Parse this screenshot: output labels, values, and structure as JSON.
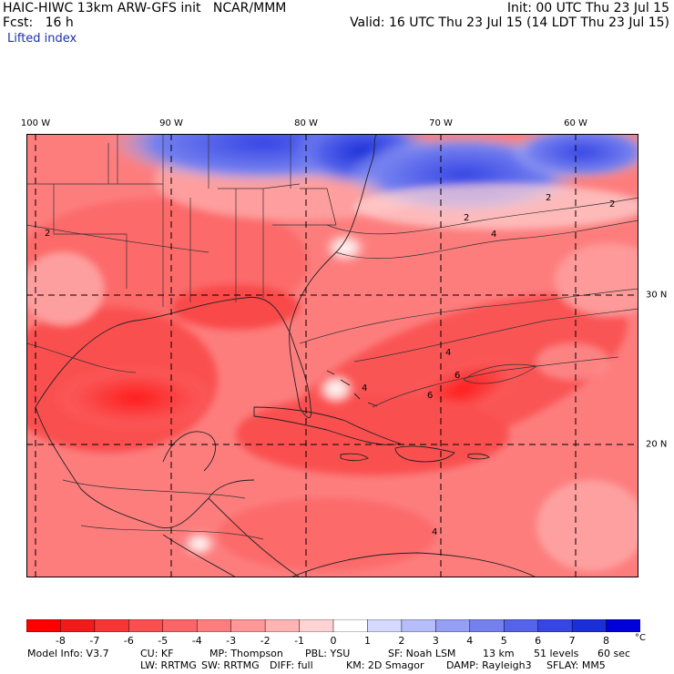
{
  "header": {
    "model_line": "HAIC-HIWC 13km ARW-GFS init   NCAR/MMM",
    "fcst_line": "Fcst:   16 h",
    "variable": "Lifted index",
    "init_line": "Init: 00 UTC Thu 23 Jul 15",
    "valid_line": "Valid: 16 UTC Thu 23 Jul 15 (14 LDT Thu 23 Jul 15)"
  },
  "map": {
    "lon_labels": [
      "100 W",
      "90 W",
      "80 W",
      "70 W",
      "60 W"
    ],
    "lat_labels": [
      "30 N",
      "20 N"
    ],
    "contour_labels": [
      "2",
      "2",
      "2",
      "2",
      "4",
      "4",
      "6",
      "4",
      "6",
      "4"
    ]
  },
  "colorbar": {
    "ticks": [
      "-8",
      "-7",
      "-6",
      "-5",
      "-4",
      "-3",
      "-2",
      "-1",
      "0",
      "1",
      "2",
      "3",
      "4",
      "5",
      "6",
      "7",
      "8"
    ],
    "unit": "°C",
    "colors": [
      "#ff0000",
      "#f21b1b",
      "#f73535",
      "#fa4f4f",
      "#fc6565",
      "#fd7d7d",
      "#fe9797",
      "#ffb4b4",
      "#ffd3d3",
      "#ffffff",
      "#d5d9ff",
      "#b6bdfb",
      "#959ff5",
      "#7580ef",
      "#5563ea",
      "#3646e5",
      "#1a2fd9",
      "#0000d8"
    ]
  },
  "model_info": {
    "line1": [
      "Model Info: V3.7",
      "CU: KF",
      "MP: Thompson",
      "PBL: YSU",
      "SF: Noah LSM",
      "13 km",
      "51 levels",
      "60 sec"
    ],
    "line2": [
      "LW: RRTMG",
      "SW: RRTMG",
      "DIFF: full",
      "KM: 2D Smagor",
      "DAMP: Rayleigh3",
      "SFLAY: MM5"
    ]
  }
}
